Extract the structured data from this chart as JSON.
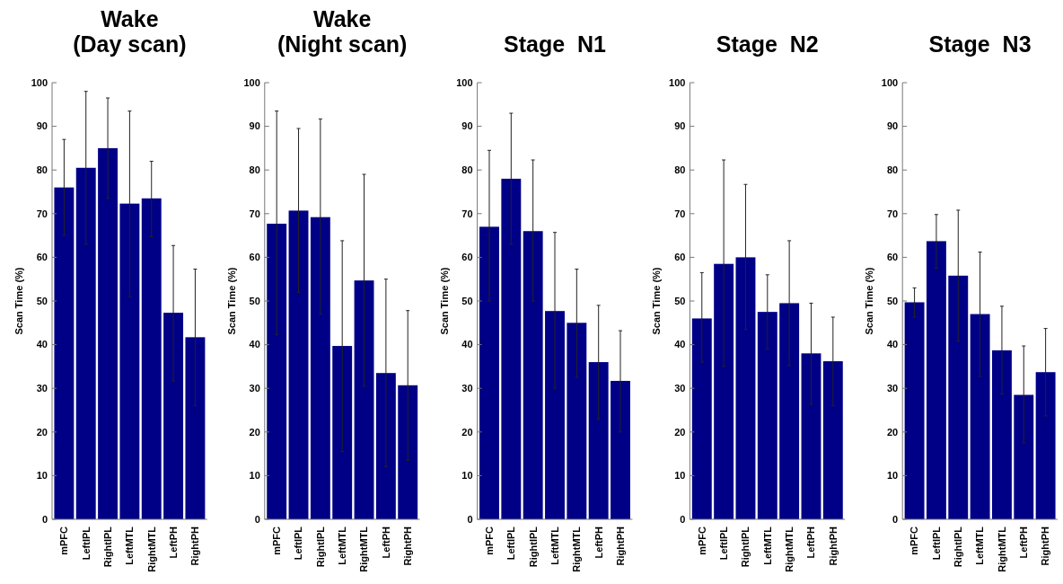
{
  "chart_data": [
    {
      "type": "bar",
      "title": "Wake\n(Day scan)",
      "ylabel": "Scan Time (%)",
      "categories": [
        "mPFC",
        "LeftIPL",
        "RightIPL",
        "LeftMTL",
        "RightMTL",
        "LeftPH",
        "RightPH"
      ],
      "color": "#000086",
      "values": [
        76,
        80.5,
        85,
        72.3,
        73.5,
        47.3,
        41.7
      ],
      "errors": [
        [
          65,
          87
        ],
        [
          63,
          98
        ],
        [
          73.5,
          96.5
        ],
        [
          51,
          93.5
        ],
        [
          64.7,
          82
        ],
        [
          31.7,
          62.7
        ],
        [
          26,
          57.3
        ]
      ],
      "ylim": [
        0,
        100
      ],
      "yticks": [
        0,
        10,
        20,
        30,
        40,
        50,
        60,
        70,
        80,
        90,
        100
      ]
    },
    {
      "type": "bar",
      "title": "Wake\n(Night scan)",
      "ylabel": "Scan Time (%)",
      "categories": [
        "mPFC",
        "LeftIPL",
        "RightIPL",
        "LeftMTL",
        "RightMTL",
        "LeftPH",
        "RightPH"
      ],
      "color": "#000086",
      "values": [
        67.7,
        70.7,
        69.2,
        39.7,
        54.7,
        33.5,
        30.7
      ],
      "errors": [
        [
          42.3,
          93.5
        ],
        [
          52,
          89.5
        ],
        [
          47,
          91.7
        ],
        [
          15.5,
          63.8
        ],
        [
          30.5,
          79
        ],
        [
          12,
          55
        ],
        [
          13.5,
          47.8
        ]
      ],
      "ylim": [
        0,
        100
      ],
      "yticks": [
        0,
        10,
        20,
        30,
        40,
        50,
        60,
        70,
        80,
        90,
        100
      ]
    },
    {
      "type": "bar",
      "title": "Stage  N1",
      "ylabel": "Scan Time (%)",
      "categories": [
        "mPFC",
        "LeftIPL",
        "RightIPL",
        "LeftMTL",
        "RightMTL",
        "LeftPH",
        "RightPH"
      ],
      "color": "#000086",
      "values": [
        67,
        78,
        66,
        47.7,
        45,
        36,
        31.7
      ],
      "errors": [
        [
          50,
          84.5
        ],
        [
          63,
          93
        ],
        [
          50,
          82.3
        ],
        [
          30,
          65.7
        ],
        [
          32.5,
          57.3
        ],
        [
          23,
          49
        ],
        [
          20,
          43.2
        ]
      ],
      "ylim": [
        0,
        100
      ],
      "yticks": [
        0,
        10,
        20,
        30,
        40,
        50,
        60,
        70,
        80,
        90,
        100
      ]
    },
    {
      "type": "bar",
      "title": "Stage  N2",
      "ylabel": "Scan Time (%)",
      "categories": [
        "mPFC",
        "LeftIPL",
        "RightIPL",
        "LeftMTL",
        "RightMTL",
        "LeftPH",
        "RightPH"
      ],
      "color": "#000086",
      "values": [
        46,
        58.5,
        60,
        47.5,
        49.5,
        38,
        36.2
      ],
      "errors": [
        [
          36,
          56.5
        ],
        [
          35,
          82.3
        ],
        [
          43.5,
          76.7
        ],
        [
          39,
          56
        ],
        [
          35.2,
          63.8
        ],
        [
          26.3,
          49.5
        ],
        [
          26,
          46.3
        ]
      ],
      "ylim": [
        0,
        100
      ],
      "yticks": [
        0,
        10,
        20,
        30,
        40,
        50,
        60,
        70,
        80,
        90,
        100
      ]
    },
    {
      "type": "bar",
      "title": "Stage  N3",
      "ylabel": "Scan Time (%)",
      "categories": [
        "mPFC",
        "LeftIPL",
        "RightIPL",
        "LeftMTL",
        "RightMTL",
        "LeftPH",
        "RightPH"
      ],
      "color": "#000086",
      "values": [
        49.7,
        63.7,
        55.8,
        47,
        38.7,
        28.5,
        33.7
      ],
      "errors": [
        [
          46.3,
          53
        ],
        [
          57.5,
          69.8
        ],
        [
          40.8,
          70.8
        ],
        [
          32.7,
          61.2
        ],
        [
          28.7,
          48.8
        ],
        [
          17.5,
          39.7
        ],
        [
          23.7,
          43.7
        ]
      ],
      "ylim": [
        0,
        100
      ],
      "yticks": [
        0,
        10,
        20,
        30,
        40,
        50,
        60,
        70,
        80,
        90,
        100
      ]
    }
  ]
}
